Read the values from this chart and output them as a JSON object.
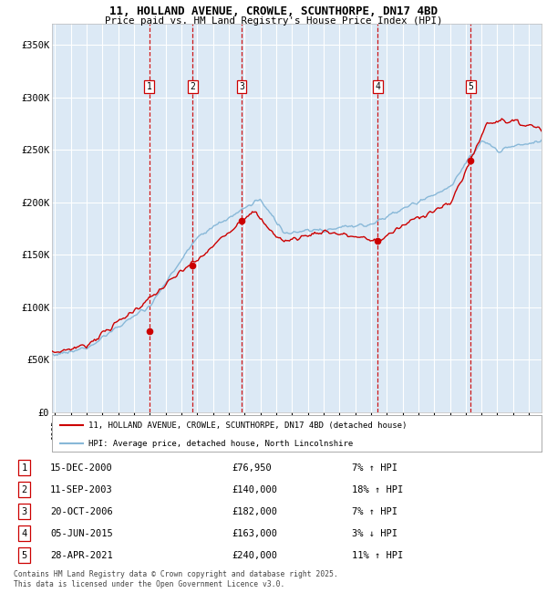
{
  "title_line1": "11, HOLLAND AVENUE, CROWLE, SCUNTHORPE, DN17 4BD",
  "title_line2": "Price paid vs. HM Land Registry's House Price Index (HPI)",
  "background_color": "#dce9f5",
  "hpi_line_color": "#88b8d8",
  "price_line_color": "#cc0000",
  "sale_marker_color": "#cc0000",
  "vline_color": "#cc0000",
  "grid_color": "#ffffff",
  "ylim": [
    0,
    370000
  ],
  "yticks": [
    0,
    50000,
    100000,
    150000,
    200000,
    250000,
    300000,
    350000
  ],
  "ytick_labels": [
    "£0",
    "£50K",
    "£100K",
    "£150K",
    "£200K",
    "£250K",
    "£300K",
    "£350K"
  ],
  "xlim_start": 1994.8,
  "xlim_end": 2025.8,
  "xtick_years": [
    1995,
    1996,
    1997,
    1998,
    1999,
    2000,
    2001,
    2002,
    2003,
    2004,
    2005,
    2006,
    2007,
    2008,
    2009,
    2010,
    2011,
    2012,
    2013,
    2014,
    2015,
    2016,
    2017,
    2018,
    2019,
    2020,
    2021,
    2022,
    2023,
    2024,
    2025
  ],
  "sales": [
    {
      "num": 1,
      "price": 76950,
      "year": 2000.96,
      "date": "15-DEC-2000",
      "price_str": "£76,950",
      "hpi_str": "7% ↑ HPI"
    },
    {
      "num": 2,
      "price": 140000,
      "year": 2003.71,
      "date": "11-SEP-2003",
      "price_str": "£140,000",
      "hpi_str": "18% ↑ HPI"
    },
    {
      "num": 3,
      "price": 182000,
      "year": 2006.8,
      "date": "20-OCT-2006",
      "price_str": "£182,000",
      "hpi_str": "7% ↑ HPI"
    },
    {
      "num": 4,
      "price": 163000,
      "year": 2015.43,
      "date": "05-JUN-2015",
      "price_str": "£163,000",
      "hpi_str": "3% ↓ HPI"
    },
    {
      "num": 5,
      "price": 240000,
      "year": 2021.32,
      "date": "28-APR-2021",
      "price_str": "£240,000",
      "hpi_str": "11% ↑ HPI"
    }
  ],
  "legend_line1": "11, HOLLAND AVENUE, CROWLE, SCUNTHORPE, DN17 4BD (detached house)",
  "legend_line2": "HPI: Average price, detached house, North Lincolnshire",
  "footer": "Contains HM Land Registry data © Crown copyright and database right 2025.\nThis data is licensed under the Open Government Licence v3.0."
}
